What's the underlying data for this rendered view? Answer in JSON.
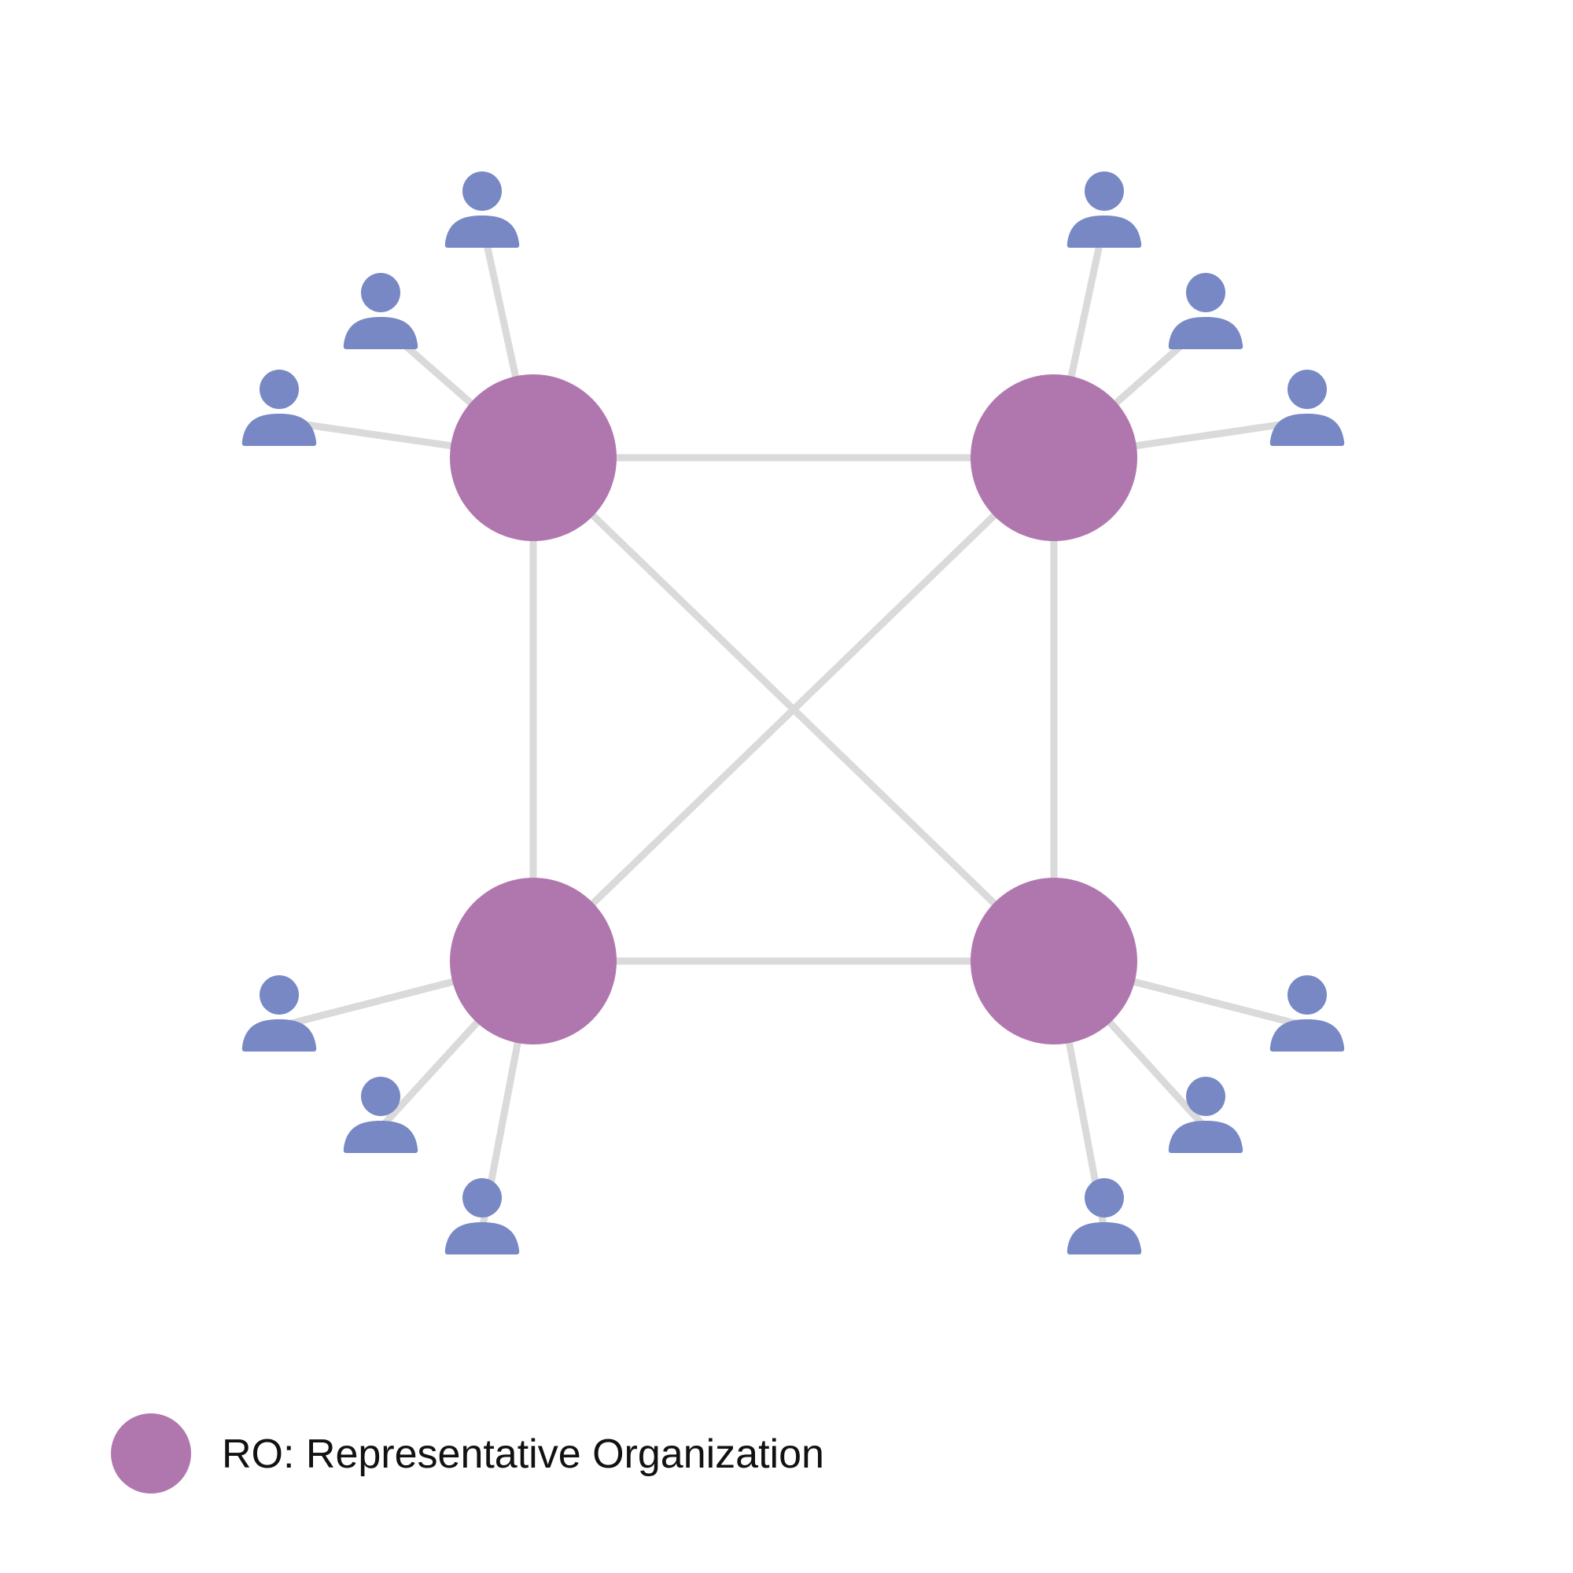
{
  "diagram": {
    "type": "network",
    "hubs": [
      {
        "id": "ro-top-left",
        "kind": "representative-organization"
      },
      {
        "id": "ro-top-right",
        "kind": "representative-organization"
      },
      {
        "id": "ro-bottom-left",
        "kind": "representative-organization"
      },
      {
        "id": "ro-bottom-right",
        "kind": "representative-organization"
      }
    ],
    "hub_links": [
      [
        "ro-top-left",
        "ro-top-right"
      ],
      [
        "ro-top-left",
        "ro-bottom-left"
      ],
      [
        "ro-top-right",
        "ro-bottom-right"
      ],
      [
        "ro-bottom-left",
        "ro-bottom-right"
      ],
      [
        "ro-top-left",
        "ro-bottom-right"
      ],
      [
        "ro-top-right",
        "ro-bottom-left"
      ]
    ],
    "members_per_hub": 3,
    "member_icon": "person-icon",
    "hub_icon": "circle"
  },
  "legend": {
    "label": "RO: Representative Organization"
  },
  "colors": {
    "hub": "#B077AF",
    "member": "#7788C5",
    "link": "#DADADA",
    "background": "#FFFFFF",
    "text": "#111111"
  }
}
